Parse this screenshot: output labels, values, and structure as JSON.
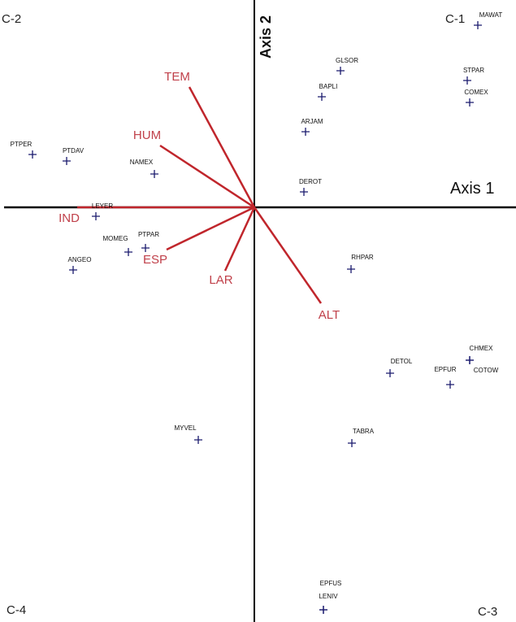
{
  "chart_data": {
    "type": "scatter",
    "subtype": "ordination biplot",
    "xlabel": "Axis 1",
    "ylabel": "Axis 2",
    "grid": false,
    "quadrant_labels": {
      "top_right": "C-1",
      "top_left": "C-2",
      "bottom_right": "C-3",
      "bottom_left": "C-4"
    },
    "colors": {
      "species": "#1a1a6e",
      "vectors": "#c0262c",
      "vector_labels": "#c0404a",
      "axes": "#000000"
    },
    "species": [
      {
        "name": "MAWAT",
        "x": 2.75,
        "y": 2.24
      },
      {
        "name": "STPAR",
        "x": 2.62,
        "y": 1.56
      },
      {
        "name": "COMEX",
        "x": 2.65,
        "y": 1.29
      },
      {
        "name": "GLSOR",
        "x": 1.06,
        "y": 1.68
      },
      {
        "name": "BAPLI",
        "x": 0.83,
        "y": 1.36
      },
      {
        "name": "ARJAM",
        "x": 0.63,
        "y": 0.93
      },
      {
        "name": "DEROT",
        "x": 0.61,
        "y": 0.19
      },
      {
        "name": "PTPER",
        "x": -2.73,
        "y": 0.65
      },
      {
        "name": "PTDAV",
        "x": -2.31,
        "y": 0.57
      },
      {
        "name": "NAMEX",
        "x": -1.23,
        "y": 0.41
      },
      {
        "name": "LEYER",
        "x": -1.95,
        "y": -0.11
      },
      {
        "name": "MOMEG",
        "x": -1.55,
        "y": -0.55
      },
      {
        "name": "PTPAR",
        "x": -1.34,
        "y": -0.5
      },
      {
        "name": "ANGEO",
        "x": -2.23,
        "y": -0.77
      },
      {
        "name": "RHPAR",
        "x": 1.19,
        "y": -0.76
      },
      {
        "name": "DETOL",
        "x": 1.67,
        "y": -2.04
      },
      {
        "name": "EPFUR",
        "x": 2.41,
        "y": -2.18
      },
      {
        "name": "CHMEX",
        "x": 2.65,
        "y": -1.88
      },
      {
        "name": "COTOW",
        "x": 2.65,
        "y": -1.88
      },
      {
        "name": "TABRA",
        "x": 1.2,
        "y": -2.9
      },
      {
        "name": "MYVEL",
        "x": -0.69,
        "y": -2.86
      },
      {
        "name": "EPFUS",
        "x": 0.85,
        "y": -4.95
      },
      {
        "name": "LENIV",
        "x": 0.85,
        "y": -4.95
      }
    ],
    "environmental_vectors": [
      {
        "name": "TEM",
        "x": -0.8,
        "y": 1.48
      },
      {
        "name": "HUM",
        "x": -1.16,
        "y": 0.76
      },
      {
        "name": "IND",
        "x": -2.18,
        "y": 0.0
      },
      {
        "name": "ESP",
        "x": -1.08,
        "y": -0.52
      },
      {
        "name": "LAR",
        "x": -0.36,
        "y": -0.78
      },
      {
        "name": "ALT",
        "x": 0.82,
        "y": -1.18
      }
    ]
  }
}
